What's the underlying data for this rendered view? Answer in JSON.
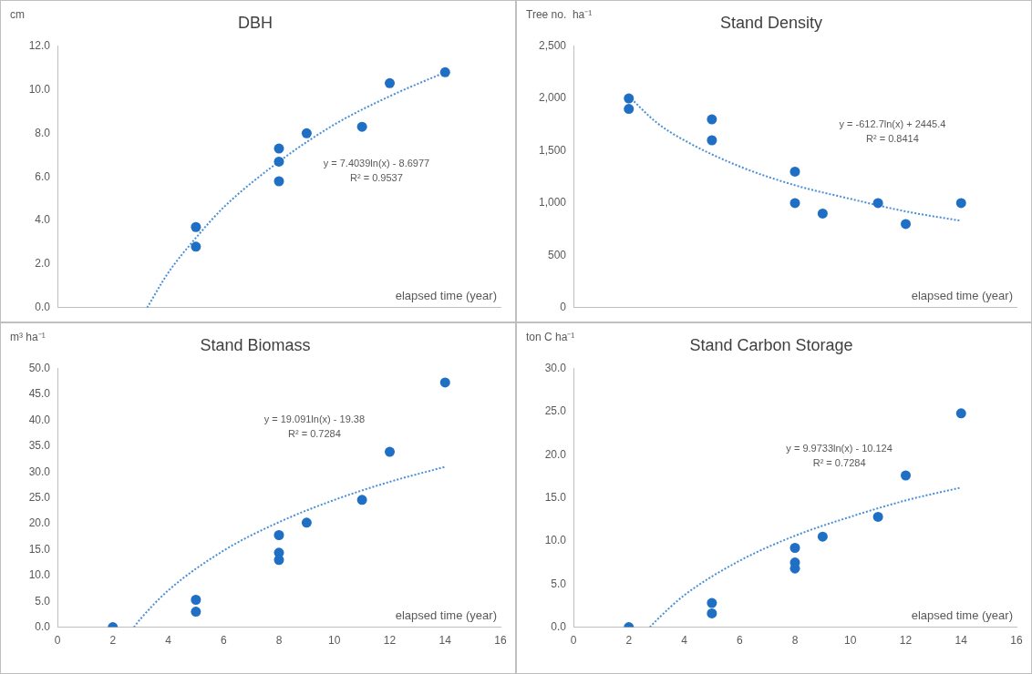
{
  "chart_data": [
    {
      "type": "scatter",
      "title": "DBH",
      "ylabel": "cm",
      "xlabel": "elapsed time (year)",
      "xlim": [
        0,
        16
      ],
      "ylim": [
        0,
        12
      ],
      "yticks": [
        {
          "value": 0,
          "label": "0.0"
        },
        {
          "value": 2,
          "label": "2.0"
        },
        {
          "value": 4,
          "label": "4.0"
        },
        {
          "value": 6,
          "label": "6.0"
        },
        {
          "value": 8,
          "label": "8.0"
        },
        {
          "value": 10,
          "label": "10.0"
        },
        {
          "value": 12,
          "label": "12.0"
        }
      ],
      "tick_labels": "y",
      "grid": false,
      "legend": false,
      "marker": "circle",
      "annotations": [
        "y = 7.4039ln(x) - 8.6977",
        "R² = 0.9537"
      ],
      "series": [
        {
          "type": "scatter",
          "color": "#1f6fc5",
          "x": [
            5,
            5,
            8,
            8,
            8,
            9,
            11,
            12,
            14
          ],
          "values": [
            3.7,
            2.8,
            7.3,
            6.7,
            5.8,
            8.0,
            8.3,
            10.3,
            10.8
          ]
        },
        {
          "type": "line",
          "line_style": "dotted",
          "marker": "none",
          "color": "#4a8fd6",
          "x": [
            3.24,
            4,
            5,
            6,
            8,
            10,
            12,
            14
          ],
          "values": [
            0,
            1.6,
            3.2,
            4.6,
            6.7,
            8.4,
            9.7,
            10.8
          ]
        }
      ]
    },
    {
      "type": "scatter",
      "title": "Stand Density",
      "ylabel": "Tree no.  ha⁻¹",
      "xlabel": "elapsed time (year)",
      "xlim": [
        0,
        16
      ],
      "ylim": [
        0,
        2500
      ],
      "yticks": [
        0,
        500,
        {
          "value": 1000,
          "label": "1,000"
        },
        {
          "value": 1500,
          "label": "1,500"
        },
        {
          "value": 2000,
          "label": "2,000"
        },
        {
          "value": 2500,
          "label": "2,500"
        }
      ],
      "tick_labels": "y",
      "grid": false,
      "legend": false,
      "marker": "circle",
      "annotations": [
        "y = -612.7ln(x) + 2445.4",
        "R² = 0.8414"
      ],
      "series": [
        {
          "type": "scatter",
          "color": "#1f6fc5",
          "x": [
            2,
            2,
            5,
            5,
            8,
            8,
            9,
            11,
            12,
            14
          ],
          "values": [
            2000,
            1900,
            1800,
            1600,
            1300,
            1000,
            900,
            1000,
            800,
            1000
          ]
        },
        {
          "type": "line",
          "line_style": "dotted",
          "marker": "none",
          "color": "#4a8fd6",
          "x": [
            2,
            3,
            4,
            6,
            8,
            10,
            12,
            14
          ],
          "values": [
            2020,
            1770,
            1600,
            1350,
            1170,
            1040,
            920,
            830
          ]
        }
      ]
    },
    {
      "type": "scatter",
      "title": "Stand Biomass",
      "ylabel": "m³ ha⁻¹",
      "xlabel": "elapsed time (year)",
      "xlim": [
        0,
        16
      ],
      "ylim": [
        0,
        50
      ],
      "xticks": [
        0,
        2,
        4,
        6,
        8,
        10,
        12,
        14,
        16
      ],
      "yticks": [
        {
          "value": 0,
          "label": "0.0"
        },
        {
          "value": 5,
          "label": "5.0"
        },
        {
          "value": 10,
          "label": "10.0"
        },
        {
          "value": 15,
          "label": "15.0"
        },
        {
          "value": 20,
          "label": "20.0"
        },
        {
          "value": 25,
          "label": "25.0"
        },
        {
          "value": 30,
          "label": "30.0"
        },
        {
          "value": 35,
          "label": "35.0"
        },
        {
          "value": 40,
          "label": "40.0"
        },
        {
          "value": 45,
          "label": "45.0"
        },
        {
          "value": 50,
          "label": "50.0"
        }
      ],
      "grid": false,
      "legend": false,
      "marker": "circle",
      "annotations": [
        "y = 19.091ln(x) - 19.38",
        "R² = 0.7284"
      ],
      "series": [
        {
          "type": "scatter",
          "color": "#1f6fc5",
          "x": [
            2,
            5,
            5,
            8,
            8,
            8,
            9,
            11,
            12,
            14
          ],
          "values": [
            0,
            5.3,
            3.0,
            17.8,
            14.4,
            13.0,
            20.2,
            24.6,
            33.9,
            47.3
          ]
        },
        {
          "type": "line",
          "line_style": "dotted",
          "marker": "none",
          "color": "#4a8fd6",
          "x": [
            2.76,
            3,
            4,
            6,
            8,
            10,
            12,
            14
          ],
          "values": [
            0,
            1.6,
            7.1,
            14.8,
            20.3,
            24.6,
            28.1,
            31.0
          ]
        }
      ]
    },
    {
      "type": "scatter",
      "title": "Stand Carbon Storage",
      "ylabel": "ton C ha⁻¹",
      "xlabel": "elapsed time (year)",
      "xlim": [
        0,
        16
      ],
      "ylim": [
        0,
        30
      ],
      "xticks": [
        0,
        2,
        4,
        6,
        8,
        10,
        12,
        14,
        16
      ],
      "yticks": [
        {
          "value": 0,
          "label": "0.0"
        },
        {
          "value": 5,
          "label": "5.0"
        },
        {
          "value": 10,
          "label": "10.0"
        },
        {
          "value": 15,
          "label": "15.0"
        },
        {
          "value": 20,
          "label": "20.0"
        },
        {
          "value": 25,
          "label": "25.0"
        },
        {
          "value": 30,
          "label": "30.0"
        }
      ],
      "grid": false,
      "legend": false,
      "marker": "circle",
      "annotations": [
        "y = 9.9733ln(x) - 10.124",
        "R² = 0.7284"
      ],
      "series": [
        {
          "type": "scatter",
          "color": "#1f6fc5",
          "x": [
            2,
            5,
            5,
            8,
            8,
            8,
            9,
            11,
            12,
            14
          ],
          "values": [
            0,
            2.8,
            1.6,
            9.2,
            7.5,
            6.8,
            10.5,
            12.8,
            17.6,
            24.8
          ]
        },
        {
          "type": "line",
          "line_style": "dotted",
          "marker": "none",
          "color": "#4a8fd6",
          "x": [
            2.76,
            3,
            4,
            6,
            8,
            10,
            12,
            14
          ],
          "values": [
            0,
            0.8,
            3.7,
            7.7,
            10.6,
            12.8,
            14.7,
            16.2
          ]
        }
      ]
    }
  ]
}
